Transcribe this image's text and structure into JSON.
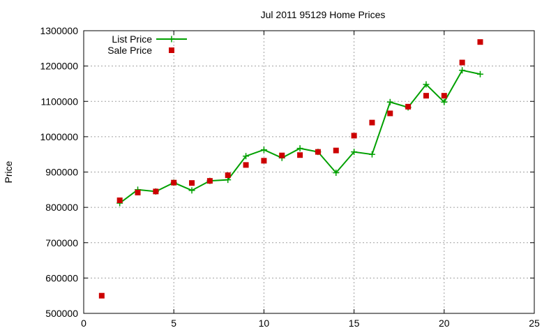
{
  "chart_data": {
    "type": "line",
    "title": "Jul 2011 95129 Home Prices",
    "xlabel": "",
    "ylabel": "Price",
    "xlim": [
      0,
      25
    ],
    "ylim": [
      500000,
      1300000
    ],
    "xticks": [
      "0",
      "5",
      "10",
      "15",
      "20",
      "25"
    ],
    "yticks": [
      "500000",
      "600000",
      "700000",
      "800000",
      "900000",
      "1000000",
      "1100000",
      "1200000",
      "1300000"
    ],
    "grid": true,
    "legend_position": "top-left",
    "series": [
      {
        "name": "List Price",
        "style": "line+cross",
        "color": "#00a000",
        "x": [
          2,
          3,
          4,
          5,
          6,
          7,
          8,
          9,
          10,
          11,
          12,
          13,
          14,
          15,
          16,
          17,
          18,
          19,
          20,
          21,
          22
        ],
        "y": [
          812000,
          850000,
          845000,
          870000,
          848000,
          875000,
          878000,
          945000,
          963000,
          940000,
          967000,
          957000,
          898000,
          957000,
          950000,
          1098000,
          1083000,
          1148000,
          1098000,
          1188000,
          1177000
        ]
      },
      {
        "name": "Sale Price",
        "style": "square",
        "color": "#cc0000",
        "x": [
          1,
          2,
          3,
          4,
          5,
          6,
          7,
          8,
          9,
          10,
          11,
          12,
          13,
          14,
          15,
          16,
          17,
          18,
          19,
          20,
          21,
          22
        ],
        "y": [
          550000,
          820000,
          842000,
          845000,
          870000,
          869000,
          875000,
          891000,
          920000,
          932000,
          947000,
          948000,
          957000,
          961000,
          1003000,
          1040000,
          1066000,
          1085000,
          1116000,
          1116000,
          1210000,
          1268000
        ]
      }
    ]
  }
}
